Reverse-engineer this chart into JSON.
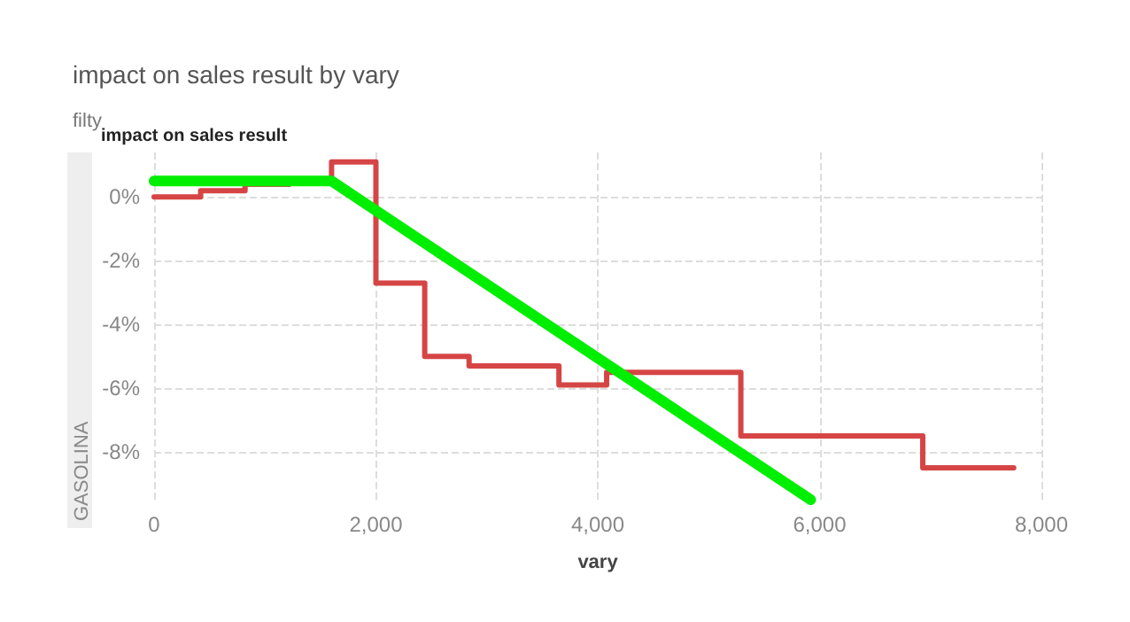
{
  "chart_data": {
    "type": "step",
    "title": "impact on sales result by vary",
    "subtitle": "filty",
    "ylabel": "impact on sales result",
    "xlabel": "vary",
    "annotations": [
      "GASOLINA"
    ],
    "xlim": [
      0,
      8000
    ],
    "xticks": [
      0,
      {
        "value": 2000,
        "label": "2,000"
      },
      {
        "value": 4000,
        "label": "4,000"
      },
      {
        "value": 6000,
        "label": "6,000"
      },
      {
        "value": 8000,
        "label": "8,000"
      }
    ],
    "ylim": [
      -9.5,
      1.4
    ],
    "yticks": [
      {
        "value": -8,
        "label": "-8%"
      },
      {
        "value": -6,
        "label": "-6%"
      },
      {
        "value": -4,
        "label": "-4%"
      },
      {
        "value": -2,
        "label": "-2%"
      },
      {
        "value": 0,
        "label": "0%"
      }
    ],
    "grid": true,
    "line_style": "solid",
    "marker": "none",
    "series": [
      {
        "color": "#d64545",
        "x": [
          0,
          420,
          820,
          1220,
          1600,
          2000,
          2440,
          2840,
          3650,
          4080,
          5290,
          6930,
          7750
        ],
        "values": [
          0,
          0.2,
          0.4,
          0.5,
          1.1,
          -2.7,
          -5.0,
          -5.3,
          -5.9,
          -5.5,
          -7.5,
          -8.5,
          -8.5
        ]
      },
      {
        "type": "line",
        "color": "#00ee00",
        "x": [
          0,
          1600,
          5920
        ],
        "values": [
          0.5,
          0.5,
          -9.5
        ]
      }
    ]
  }
}
